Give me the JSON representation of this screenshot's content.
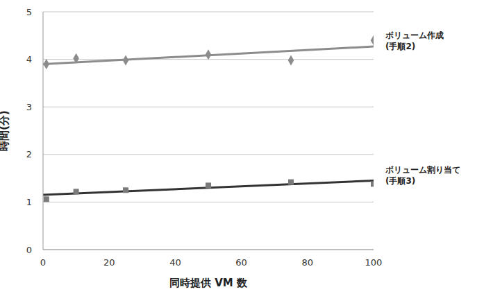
{
  "chart_data": {
    "type": "scatter",
    "x_label": "同時提供 VM 数",
    "y_label": "時間(分)",
    "xlim": [
      0,
      100
    ],
    "xticks": [
      0,
      20,
      40,
      60,
      80,
      100
    ],
    "ylim": [
      0,
      5
    ],
    "yticks": [
      0,
      1,
      2,
      3,
      4,
      5
    ],
    "grid": true,
    "series": [
      {
        "type": "scatter",
        "marker": "diamond",
        "color": "#8c8c8c",
        "x": [
          1,
          10,
          25,
          50,
          75,
          100
        ],
        "values": [
          3.9,
          4.02,
          3.98,
          4.1,
          3.98,
          4.4
        ]
      },
      {
        "name": "ボリューム作成(手順2)",
        "type": "line",
        "color": "#8c8c8c",
        "x": [
          0,
          100
        ],
        "values": [
          3.9,
          4.27
        ]
      },
      {
        "type": "scatter",
        "marker": "square",
        "color": "#7a7a7a",
        "x": [
          1,
          10,
          25,
          50,
          75,
          100
        ],
        "values": [
          1.06,
          1.22,
          1.25,
          1.35,
          1.42,
          1.38
        ]
      },
      {
        "name": "ボリューム割り当て(手順3)",
        "type": "line",
        "color": "#333333",
        "x": [
          0,
          100
        ],
        "values": [
          1.15,
          1.45
        ]
      }
    ]
  }
}
